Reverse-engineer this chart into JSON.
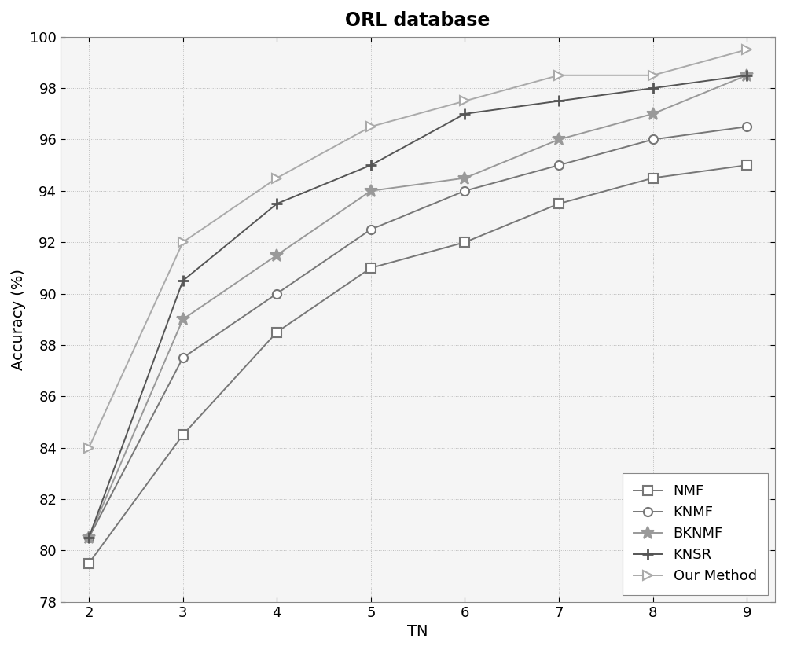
{
  "title": "ORL database",
  "xlabel": "TN",
  "ylabel": "Accuracy (%)",
  "x": [
    2,
    3,
    4,
    5,
    6,
    7,
    8,
    9
  ],
  "series": [
    {
      "name": "NMF",
      "y": [
        79.5,
        84.5,
        88.5,
        91.0,
        92.0,
        93.5,
        94.5,
        95.0
      ],
      "color": "#777777",
      "marker": "s",
      "markersize": 8,
      "markerfacecolor": "white"
    },
    {
      "name": "KNMF",
      "y": [
        80.5,
        87.5,
        90.0,
        92.5,
        94.0,
        95.0,
        96.0,
        96.5
      ],
      "color": "#777777",
      "marker": "o",
      "markersize": 8,
      "markerfacecolor": "white"
    },
    {
      "name": "BKNMF",
      "y": [
        80.5,
        89.0,
        91.5,
        94.0,
        94.5,
        96.0,
        97.0,
        98.5
      ],
      "color": "#999999",
      "marker": "*",
      "markersize": 12,
      "markerfacecolor": "#999999"
    },
    {
      "name": "KNSR",
      "y": [
        80.5,
        90.5,
        93.5,
        95.0,
        97.0,
        97.5,
        98.0,
        98.5
      ],
      "color": "#555555",
      "marker": "P",
      "markersize": 10,
      "markerfacecolor": "#555555"
    },
    {
      "name": "Our Method",
      "y": [
        84.0,
        92.0,
        94.5,
        96.5,
        97.5,
        98.5,
        98.5,
        99.5
      ],
      "color": "#aaaaaa",
      "marker": ">",
      "markersize": 9,
      "markerfacecolor": "white"
    }
  ],
  "xlim": [
    1.7,
    9.3
  ],
  "ylim": [
    78,
    100
  ],
  "yticks": [
    78,
    80,
    82,
    84,
    86,
    88,
    90,
    92,
    94,
    96,
    98,
    100
  ],
  "xticks": [
    2,
    3,
    4,
    5,
    6,
    7,
    8,
    9
  ],
  "legend_loc": "lower right",
  "grid_color": "#bbbbbb",
  "plot_bg_color": "#f5f5f5",
  "fig_bg_color": "#ffffff",
  "title_fontsize": 17,
  "label_fontsize": 14,
  "tick_fontsize": 13,
  "legend_fontsize": 13,
  "linewidth": 1.4
}
